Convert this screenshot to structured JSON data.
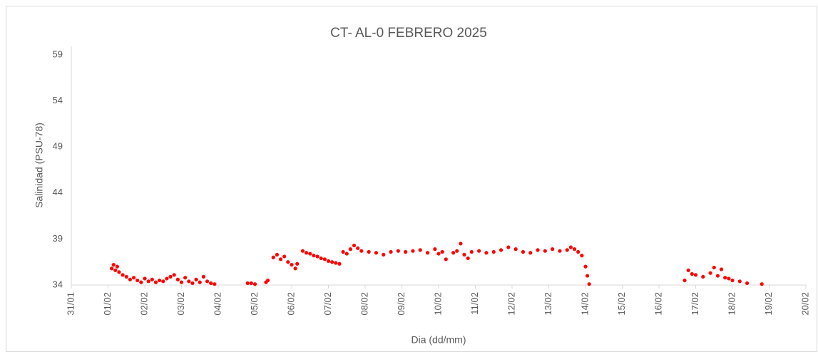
{
  "chart_data": {
    "type": "scatter",
    "title": "CT- AL-0 FEBRERO 2025",
    "xlabel": "Dia (dd/mm)",
    "ylabel": "Salinidad (PSU-78)",
    "color": "#ff0000",
    "x": [
      1.1,
      1.15,
      1.2,
      1.25,
      1.3,
      1.4,
      1.5,
      1.6,
      1.7,
      1.8,
      1.9,
      2.0,
      2.1,
      2.2,
      2.3,
      2.4,
      2.5,
      2.6,
      2.7,
      2.8,
      2.9,
      3.0,
      3.1,
      3.2,
      3.3,
      3.4,
      3.5,
      3.6,
      3.7,
      3.8,
      3.9,
      4.8,
      4.9,
      5.0,
      5.3,
      5.35,
      5.5,
      5.6,
      5.7,
      5.8,
      5.9,
      6.0,
      6.1,
      6.15,
      6.3,
      6.4,
      6.5,
      6.6,
      6.7,
      6.8,
      6.9,
      7.0,
      7.1,
      7.2,
      7.3,
      7.4,
      7.5,
      7.6,
      7.7,
      7.8,
      7.9,
      8.1,
      8.3,
      8.5,
      8.7,
      8.9,
      9.1,
      9.3,
      9.5,
      9.7,
      9.9,
      10.0,
      10.1,
      10.2,
      10.4,
      10.5,
      10.6,
      10.7,
      10.8,
      10.9,
      11.1,
      11.3,
      11.5,
      11.7,
      11.9,
      12.1,
      12.3,
      12.5,
      12.7,
      12.9,
      13.1,
      13.3,
      13.5,
      13.6,
      13.7,
      13.8,
      13.9,
      14.0,
      14.05,
      14.1,
      16.7,
      16.8,
      16.9,
      17.0,
      17.2,
      17.4,
      17.5,
      17.6,
      17.7,
      17.8,
      17.9,
      18.0,
      18.2,
      18.4,
      18.8
    ],
    "values": [
      35.8,
      36.2,
      35.6,
      36.0,
      35.4,
      35.1,
      34.9,
      34.6,
      34.8,
      34.5,
      34.3,
      34.7,
      34.4,
      34.6,
      34.3,
      34.5,
      34.4,
      34.7,
      34.9,
      35.1,
      34.6,
      34.3,
      34.8,
      34.4,
      34.2,
      34.6,
      34.3,
      34.9,
      34.4,
      34.2,
      34.1,
      34.2,
      34.2,
      34.1,
      34.3,
      34.5,
      37.0,
      37.3,
      36.8,
      37.1,
      36.5,
      36.2,
      35.8,
      36.3,
      37.7,
      37.5,
      37.4,
      37.2,
      37.1,
      36.9,
      36.8,
      36.6,
      36.5,
      36.4,
      36.3,
      37.6,
      37.4,
      37.9,
      38.3,
      38.0,
      37.7,
      37.6,
      37.5,
      37.3,
      37.6,
      37.7,
      37.6,
      37.7,
      37.8,
      37.5,
      37.9,
      37.4,
      37.6,
      36.8,
      37.5,
      37.7,
      38.5,
      37.3,
      36.9,
      37.6,
      37.7,
      37.5,
      37.6,
      37.8,
      38.1,
      37.9,
      37.6,
      37.5,
      37.8,
      37.7,
      37.9,
      37.7,
      37.8,
      38.1,
      37.9,
      37.6,
      37.2,
      36.0,
      35.0,
      34.1,
      34.5,
      35.6,
      35.2,
      35.1,
      34.9,
      35.3,
      35.9,
      35.0,
      35.7,
      34.8,
      34.7,
      34.5,
      34.4,
      34.2,
      34.1
    ],
    "xlim": [
      0,
      20
    ],
    "xticks": [
      {
        "value": 0,
        "label": "31/01"
      },
      {
        "value": 1,
        "label": "01/02"
      },
      {
        "value": 2,
        "label": "02/02"
      },
      {
        "value": 3,
        "label": "03/02"
      },
      {
        "value": 4,
        "label": "04/02"
      },
      {
        "value": 5,
        "label": "05/02"
      },
      {
        "value": 6,
        "label": "06/02"
      },
      {
        "value": 7,
        "label": "07/02"
      },
      {
        "value": 8,
        "label": "08/02"
      },
      {
        "value": 9,
        "label": "09/02"
      },
      {
        "value": 10,
        "label": "10/02"
      },
      {
        "value": 11,
        "label": "11/02"
      },
      {
        "value": 12,
        "label": "12/02"
      },
      {
        "value": 13,
        "label": "13/02"
      },
      {
        "value": 14,
        "label": "14/02"
      },
      {
        "value": 15,
        "label": "15/02"
      },
      {
        "value": 16,
        "label": "16/02"
      },
      {
        "value": 17,
        "label": "17/02"
      },
      {
        "value": 18,
        "label": "18/02"
      },
      {
        "value": 19,
        "label": "19/02"
      },
      {
        "value": 20,
        "label": "20/02"
      }
    ],
    "ylim": [
      34,
      59
    ],
    "yticks": [
      34,
      39,
      44,
      49,
      54,
      59
    ],
    "grid": false
  }
}
